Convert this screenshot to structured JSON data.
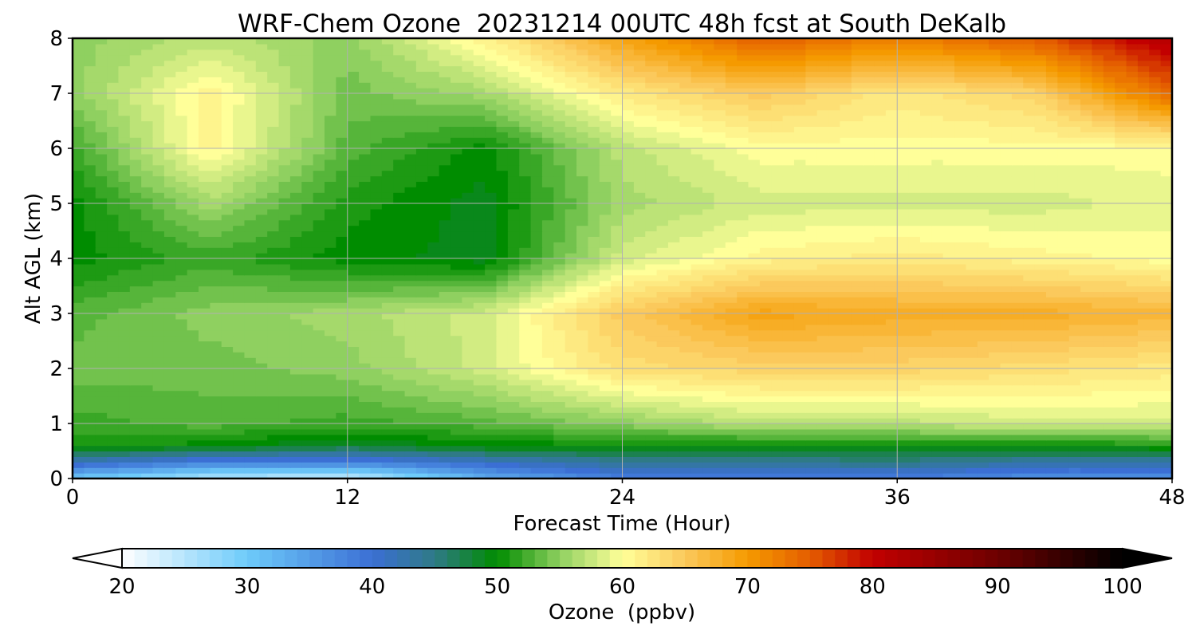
{
  "chart_data": {
    "type": "heatmap",
    "title": "WRF-Chem Ozone  20231214 00UTC 48h fcst at South DeKalb",
    "xlabel": "Forecast Time (Hour)",
    "ylabel": "Alt AGL (km)",
    "xlim": [
      0,
      48
    ],
    "ylim": [
      0,
      8
    ],
    "xticks": [
      0,
      12,
      24,
      36,
      48
    ],
    "yticks": [
      0,
      1,
      2,
      3,
      4,
      5,
      6,
      7,
      8
    ],
    "grid": true,
    "x": [
      0,
      6,
      12,
      18,
      24,
      30,
      36,
      42,
      48
    ],
    "y": [
      0,
      0.3,
      0.6,
      1,
      2,
      3,
      4,
      5,
      6,
      7,
      8
    ],
    "z": [
      [
        30,
        25,
        23,
        33,
        38,
        38,
        38,
        36,
        36
      ],
      [
        42,
        38,
        38,
        41,
        44,
        44,
        45,
        43,
        43
      ],
      [
        51,
        50,
        48,
        50,
        50,
        50,
        50,
        50,
        51
      ],
      [
        52,
        53,
        52,
        53,
        55,
        57,
        57,
        58,
        58
      ],
      [
        54,
        54,
        55,
        58,
        63,
        64,
        64,
        63,
        62
      ],
      [
        53,
        55,
        56,
        58,
        65,
        69,
        68,
        68,
        67
      ],
      [
        50,
        52,
        50,
        49,
        58,
        61,
        62,
        61,
        60
      ],
      [
        50,
        56,
        51,
        49,
        56,
        58,
        58,
        58,
        59
      ],
      [
        52,
        61,
        53,
        50,
        57,
        60,
        60,
        60,
        60
      ],
      [
        55,
        61,
        54,
        56,
        62,
        65,
        62,
        64,
        74
      ],
      [
        55,
        57,
        55,
        61,
        69,
        75,
        72,
        75,
        82
      ]
    ],
    "colorbar": {
      "label": "Ozone  (ppbv)",
      "min": 20,
      "max": 100,
      "ticks": [
        20,
        30,
        40,
        50,
        60,
        70,
        80,
        90,
        100
      ],
      "extend": "both",
      "stops": [
        {
          "v": 20,
          "c": "#ffffff"
        },
        {
          "v": 30,
          "c": "#6ecbfa"
        },
        {
          "v": 40,
          "c": "#3b6fd4"
        },
        {
          "v": 45,
          "c": "#2f7a86"
        },
        {
          "v": 50,
          "c": "#008c00"
        },
        {
          "v": 55,
          "c": "#8fd060"
        },
        {
          "v": 60,
          "c": "#ffff99"
        },
        {
          "v": 65,
          "c": "#fbc95c"
        },
        {
          "v": 70,
          "c": "#f59a00"
        },
        {
          "v": 75,
          "c": "#e45d00"
        },
        {
          "v": 80,
          "c": "#c20000"
        },
        {
          "v": 90,
          "c": "#6d0000"
        },
        {
          "v": 100,
          "c": "#000000"
        }
      ]
    }
  }
}
